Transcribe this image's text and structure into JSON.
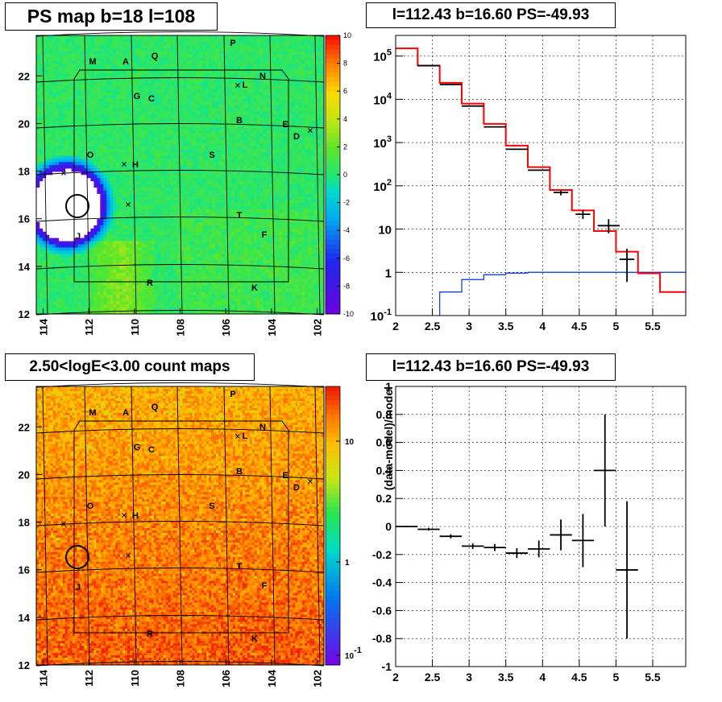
{
  "titles": {
    "ps_map": "PS map b=18 l=108",
    "spectrum": "l=112.43 b=16.60 PS=-49.93",
    "count_map": "2.50<logE<3.00 count maps",
    "residual": "l=112.43 b=16.60 PS=-49.93"
  },
  "source_labels": [
    "M",
    "A",
    "Q",
    "P",
    "N",
    "L",
    "G",
    "C",
    "B",
    "E",
    "D",
    "O",
    "H",
    "S",
    "T",
    "F",
    "J",
    "R",
    "K"
  ],
  "chart_data": [
    {
      "type": "heatmap",
      "name_on_chart": "PS map b=18 l=108",
      "x_ticks": [
        "114",
        "112",
        "110",
        "108",
        "106",
        "104",
        "102"
      ],
      "y_ticks": [
        "12",
        "14",
        "16",
        "18",
        "20",
        "22"
      ],
      "xlim": [
        114.3,
        101.7
      ],
      "ylim": [
        12,
        23.7
      ],
      "colorbar": {
        "ticks": [
          "10",
          "8",
          "6",
          "4",
          "2",
          "0",
          "-2",
          "-4",
          "-6",
          "-8",
          "-10"
        ],
        "range": [
          -10,
          10
        ],
        "scale": "linear"
      }
    },
    {
      "type": "line",
      "name_on_chart": "l=112.43 b=16.60 PS=-49.93",
      "x_ticks": [
        "2",
        "2.5",
        "3",
        "3.5",
        "4",
        "4.5",
        "5",
        "5.5"
      ],
      "y_ticks": [
        "10^-1",
        "1",
        "10",
        "10^2",
        "10^3",
        "10^4",
        "10^5"
      ],
      "xlim": [
        2,
        5.95
      ],
      "ylim": [
        0.1,
        300000
      ],
      "y_scale": "log",
      "grid": true,
      "model_red": {
        "bins": [
          [
            2.0,
            2.3
          ],
          [
            2.3,
            2.6
          ],
          [
            2.6,
            2.9
          ],
          [
            2.9,
            3.2
          ],
          [
            3.2,
            3.5
          ],
          [
            3.5,
            3.8
          ],
          [
            3.8,
            4.1
          ],
          [
            4.1,
            4.4
          ],
          [
            4.4,
            4.7
          ],
          [
            4.7,
            5.0
          ],
          [
            5.0,
            5.3
          ],
          [
            5.3,
            5.6
          ],
          [
            5.6,
            5.95
          ]
        ],
        "values": [
          150000,
          60000,
          24000,
          8000,
          2700,
          850,
          270,
          80,
          27,
          9,
          3,
          0.95,
          0.35
        ]
      },
      "data_black": {
        "x": [
          2.45,
          2.75,
          3.05,
          3.35,
          3.65,
          3.95,
          4.25,
          4.55,
          4.9,
          5.15
        ],
        "y": [
          60000,
          22000,
          7000,
          2300,
          700,
          230,
          70,
          22,
          12,
          2
        ],
        "xerr": [
          0.15,
          0.15,
          0.15,
          0.15,
          0.15,
          0.15,
          0.1,
          0.1,
          0.15,
          0.1
        ],
        "ylo": [
          60000,
          22000,
          7000,
          2300,
          700,
          230,
          60,
          17,
          8,
          0.6
        ],
        "yhi": [
          60000,
          22000,
          7000,
          2300,
          700,
          230,
          80,
          28,
          17,
          3.5
        ]
      },
      "background_blue": {
        "bins": [
          [
            2.6,
            2.9
          ],
          [
            2.9,
            3.2
          ],
          [
            3.2,
            3.5
          ],
          [
            3.5,
            3.8
          ],
          [
            3.8,
            5.95
          ]
        ],
        "values": [
          0.35,
          0.68,
          0.88,
          0.96,
          1.0
        ]
      }
    },
    {
      "type": "heatmap",
      "name_on_chart": "2.50<logE<3.00 count maps",
      "x_ticks": [
        "114",
        "112",
        "110",
        "108",
        "106",
        "104",
        "102"
      ],
      "y_ticks": [
        "12",
        "14",
        "16",
        "18",
        "20",
        "22"
      ],
      "xlim": [
        114.3,
        101.7
      ],
      "ylim": [
        12,
        23.7
      ],
      "colorbar": {
        "ticks": [
          "10",
          "1",
          "10^-1"
        ],
        "scale": "log"
      }
    },
    {
      "type": "scatter",
      "name_on_chart": "l=112.43 b=16.60 PS=-49.93",
      "ylabel": "(data-model)/model",
      "x_ticks": [
        "2",
        "2.5",
        "3",
        "3.5",
        "4",
        "4.5",
        "5",
        "5.5"
      ],
      "y_ticks": [
        "-1",
        "-0.8",
        "-0.6",
        "-0.4",
        "-0.2",
        "0",
        "0.2",
        "0.4",
        "0.6",
        "0.8",
        "1"
      ],
      "xlim": [
        2,
        5.95
      ],
      "ylim": [
        -1,
        1
      ],
      "grid": true,
      "points": {
        "x": [
          2.15,
          2.45,
          2.75,
          3.05,
          3.35,
          3.65,
          3.95,
          4.25,
          4.55,
          4.85,
          5.15
        ],
        "y": [
          0.0,
          -0.02,
          -0.07,
          -0.14,
          -0.15,
          -0.19,
          -0.16,
          -0.06,
          -0.1,
          0.4,
          -0.31
        ],
        "xerr": [
          0.15,
          0.15,
          0.15,
          0.15,
          0.15,
          0.15,
          0.15,
          0.15,
          0.15,
          0.15,
          0.15
        ],
        "yerr": [
          0.005,
          0.01,
          0.015,
          0.02,
          0.025,
          0.035,
          0.06,
          0.11,
          0.19,
          0.4,
          0.49
        ]
      }
    }
  ]
}
